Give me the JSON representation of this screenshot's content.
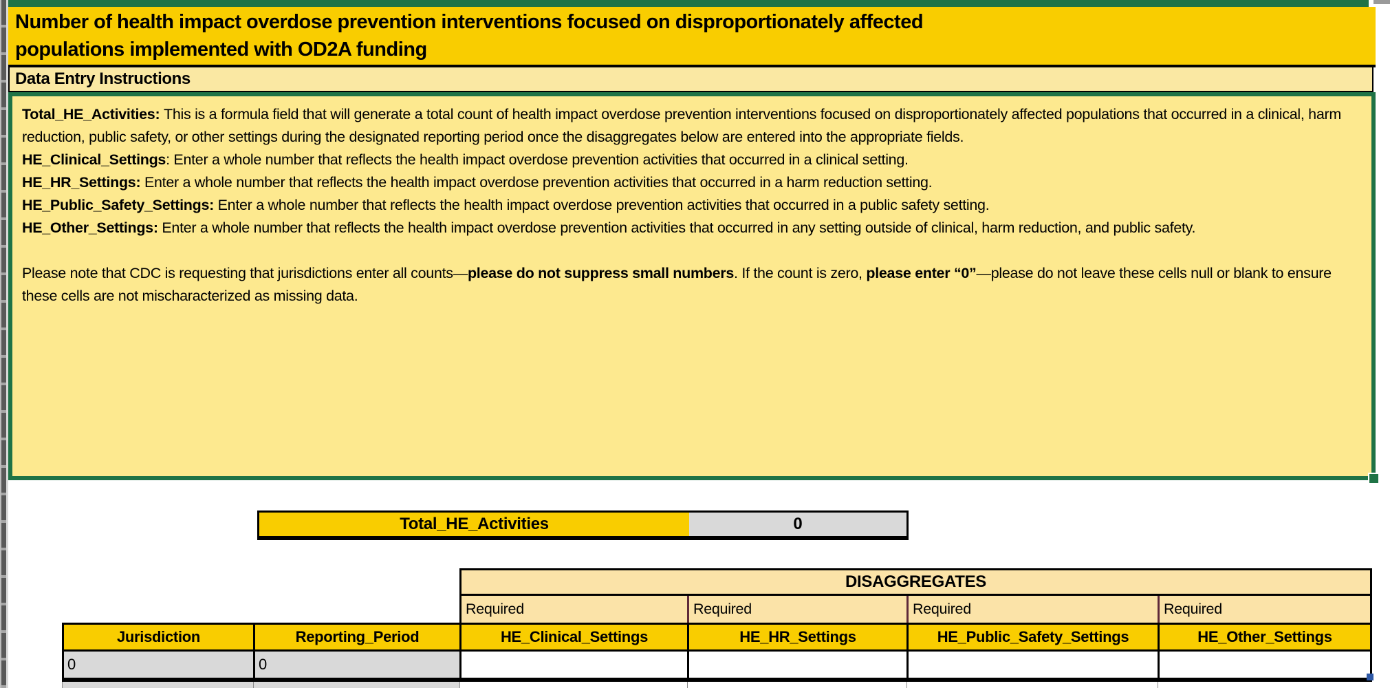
{
  "title_lines": [
    "Number of health impact overdose prevention interventions focused on disproportionately affected",
    "populations implemented with OD2A funding"
  ],
  "section_header": "Data Entry Instructions",
  "instructions": {
    "paragraphs": [
      [
        {
          "b": true,
          "t": "Total_HE_Activities: "
        },
        {
          "b": false,
          "t": "This is a formula field that will generate a total count of health impact overdose prevention interventions focused on disproportionately affected populations that occurred in a clinical, harm reduction, public safety, or other settings during the designated reporting period once the disaggregates below are entered into the appropriate fields."
        }
      ],
      [
        {
          "b": true,
          "t": "HE_Clinical_Settings"
        },
        {
          "b": false,
          "t": ": Enter a whole number that reflects the health impact overdose prevention activities that occurred in a clinical setting."
        }
      ],
      [
        {
          "b": true,
          "t": "HE_HR_Settings: "
        },
        {
          "b": false,
          "t": "Enter a whole number that reflects the health impact overdose prevention activities that occurred in a harm reduction setting."
        }
      ],
      [
        {
          "b": true,
          "t": "HE_Public_Safety_Settings: "
        },
        {
          "b": false,
          "t": "Enter a whole number that reflects the health impact overdose prevention activities that occurred in a public safety setting."
        }
      ],
      [
        {
          "b": true,
          "t": "HE_Other_Settings: "
        },
        {
          "b": false,
          "t": "Enter a whole number that reflects the health impact overdose prevention activities that occurred in any setting outside of clinical, harm reduction, and public safety."
        }
      ],
      [],
      [
        {
          "b": false,
          "t": "Please note that CDC is requesting that jurisdictions enter all counts—"
        },
        {
          "b": true,
          "t": "please do not suppress small numbers"
        },
        {
          "b": false,
          "t": ". If the count is zero, "
        },
        {
          "b": true,
          "t": "please enter “0”"
        },
        {
          "b": false,
          "t": "—please do not leave these cells null or blank to ensure these cells are not mischaracterized as missing data."
        }
      ]
    ]
  },
  "total": {
    "label": "Total_HE_Activities",
    "value": "0"
  },
  "disaggregates": {
    "title": "DISAGGREGATES",
    "required_label": "Required"
  },
  "table": {
    "headers": [
      "Jurisdiction",
      "Reporting_Period",
      "HE_Clinical_Settings",
      "HE_HR_Settings",
      "HE_Public_Safety_Settings",
      "HE_Other_Settings"
    ],
    "row": [
      "0",
      "0",
      "",
      "",
      "",
      ""
    ]
  },
  "colors": {
    "gold": "#F9CD00",
    "light_yellow": "#FDE98F",
    "section_yellow": "#FAE8A3",
    "tan": "#FBE3A8",
    "green": "#1F7346",
    "gray_cell": "#D9D9D9",
    "maroon_grid": "#5E2A3A",
    "blue_marker": "#2E58A6"
  }
}
